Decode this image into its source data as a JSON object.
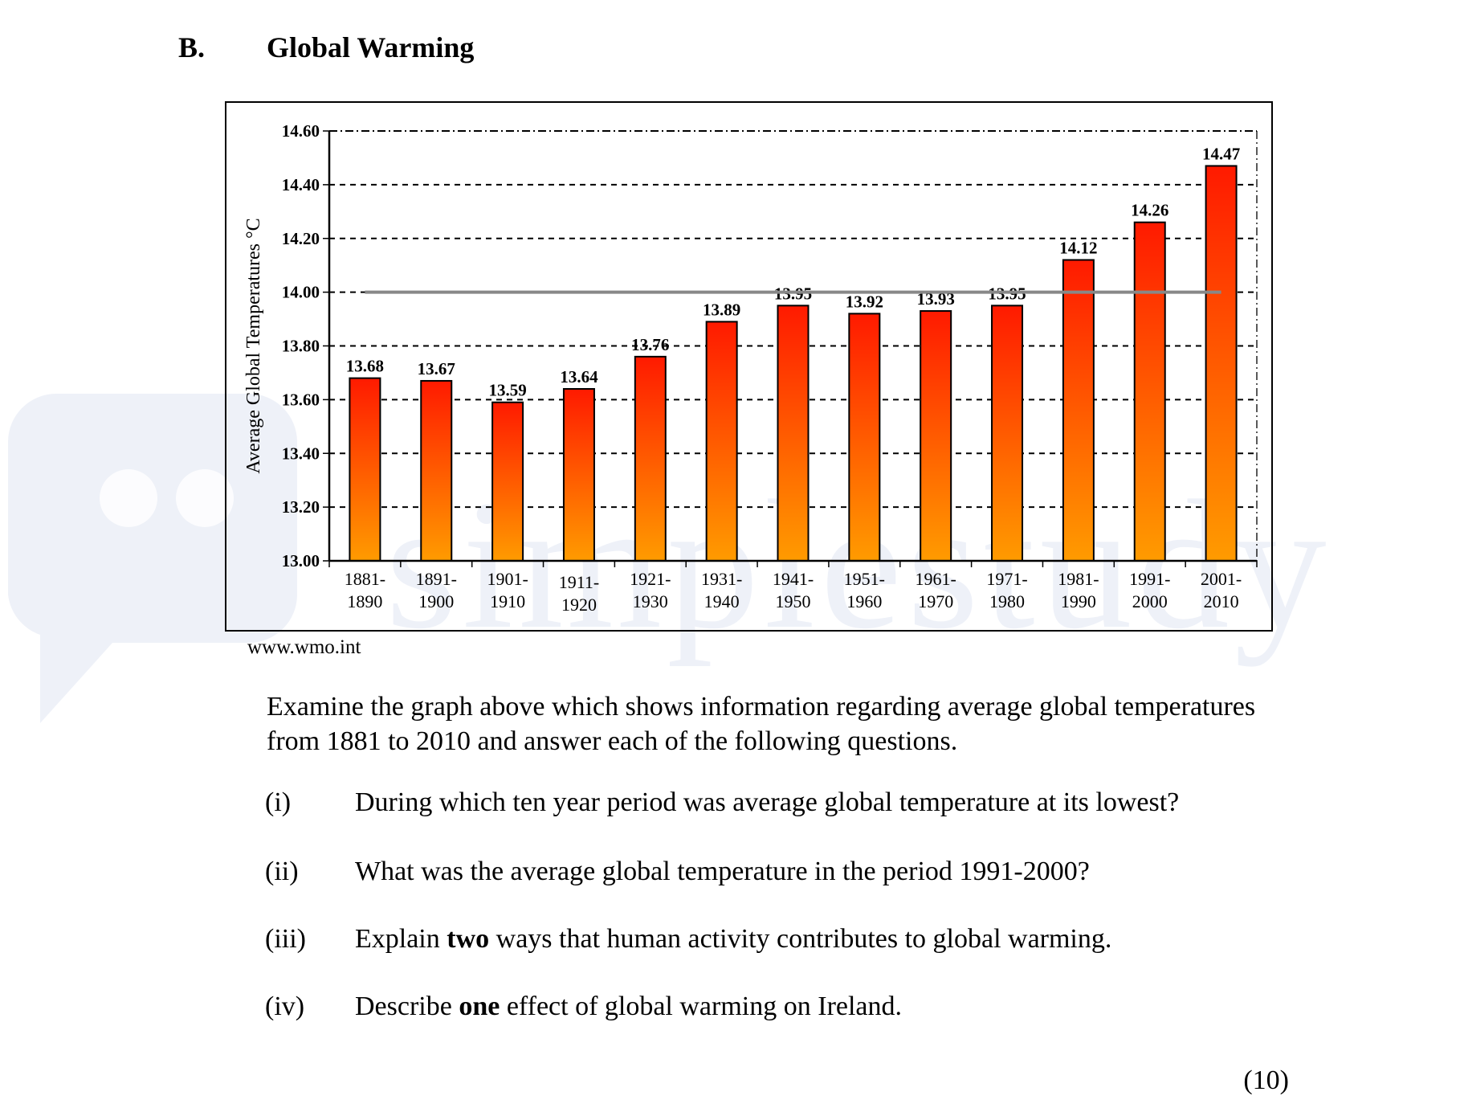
{
  "section": {
    "letter": "B.",
    "title": "Global Warming"
  },
  "watermark": {
    "text": "simplestudy"
  },
  "source": "www.wmo.int",
  "intro": "Examine the graph above which shows information regarding average global temperatures from 1881 to 2010 and answer each of the following questions.",
  "questions": [
    {
      "num": "(i)",
      "parts": [
        {
          "t": "During which ten year period was average global temperature at its lowest?",
          "b": false
        }
      ]
    },
    {
      "num": "(ii)",
      "parts": [
        {
          "t": "What was the average global temperature in the period 1991-2000?",
          "b": false
        }
      ]
    },
    {
      "num": "(iii)",
      "parts": [
        {
          "t": "Explain ",
          "b": false
        },
        {
          "t": "two",
          "b": true
        },
        {
          "t": " ways that human activity contributes to global warming.",
          "b": false
        }
      ]
    },
    {
      "num": "(iv)",
      "parts": [
        {
          "t": "Describe ",
          "b": false
        },
        {
          "t": "one",
          "b": true
        },
        {
          "t": " effect of global warming on Ireland.",
          "b": false
        }
      ]
    }
  ],
  "marks": "(10)",
  "chart_data": {
    "type": "bar",
    "title": "",
    "xlabel": "",
    "ylabel": "Average Global Temperatures °C",
    "ylim": [
      13.0,
      14.6
    ],
    "yticks": [
      13.0,
      13.2,
      13.4,
      13.6,
      13.8,
      14.0,
      14.2,
      14.4,
      14.6
    ],
    "ytick_labels": [
      "13.00",
      "13.20",
      "13.40",
      "13.60",
      "13.80",
      "14.00",
      "14.20",
      "14.40",
      "14.60"
    ],
    "categories": [
      [
        "1881-",
        "1890"
      ],
      [
        "1891-",
        "1900"
      ],
      [
        "1901-",
        "1910"
      ],
      [
        "1911-",
        "1920"
      ],
      [
        "1921-",
        "1930"
      ],
      [
        "1931-",
        "1940"
      ],
      [
        "1941-",
        "1950"
      ],
      [
        "1951-",
        "1960"
      ],
      [
        "1961-",
        "1970"
      ],
      [
        "1971-",
        "1980"
      ],
      [
        "1981-",
        "1990"
      ],
      [
        "1991-",
        "2000"
      ],
      [
        "2001-",
        "2010"
      ]
    ],
    "values": [
      13.68,
      13.67,
      13.59,
      13.64,
      13.76,
      13.89,
      13.95,
      13.92,
      13.93,
      13.95,
      14.12,
      14.26,
      14.47
    ],
    "value_labels": [
      "13.68",
      "13.67",
      "13.59",
      "13.64",
      "13.76",
      "13.89",
      "13.95",
      "13.92",
      "13.93",
      "13.95",
      "14.12",
      "14.26",
      "14.47"
    ],
    "reference_line": 14.0,
    "grid": true,
    "colors": {
      "bar_top": "#ff1a00",
      "bar_bottom": "#ff9b00",
      "reference": "#888888",
      "grid": "#000000"
    }
  }
}
